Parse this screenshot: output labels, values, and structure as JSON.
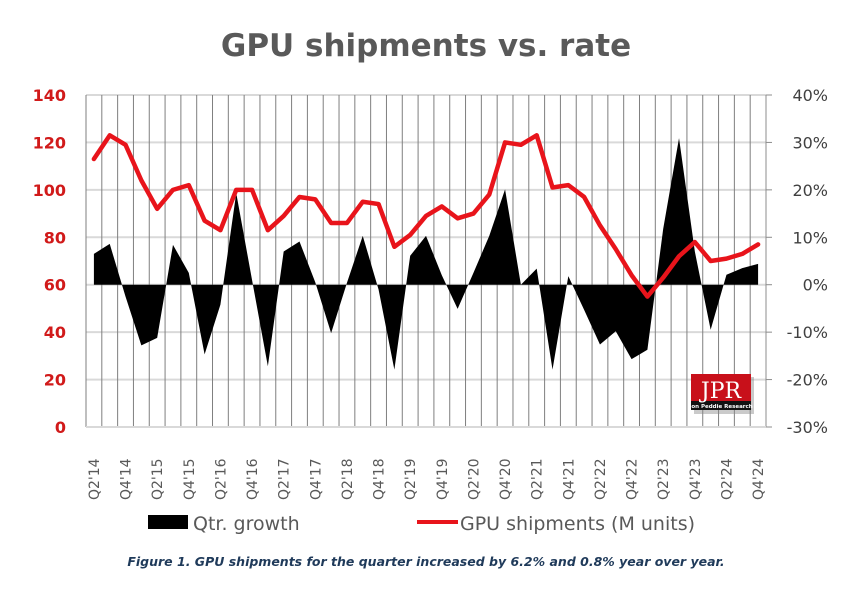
{
  "chart_data": {
    "type": "line+area",
    "title": "GPU shipments vs. rate",
    "caption": "Figure 1. GPU shipments for the quarter increased by 6.2% and 0.8% year over year.",
    "xlabel": "",
    "ylabel_left": "",
    "ylabel_right": "",
    "ylim_left": [
      0,
      140
    ],
    "ylim_right": [
      -30,
      40
    ],
    "yticks_left": [
      "0",
      "20",
      "40",
      "60",
      "80",
      "100",
      "120",
      "140"
    ],
    "yticks_left_values": [
      0,
      20,
      40,
      60,
      80,
      100,
      120,
      140
    ],
    "yticks_right": [
      "-30%",
      "-20%",
      "-10%",
      "0%",
      "10%",
      "20%",
      "30%",
      "40%"
    ],
    "yticks_right_values": [
      -30,
      -20,
      -10,
      0,
      10,
      20,
      30,
      40
    ],
    "grid": true,
    "legend_position": "bottom",
    "categories": [
      "Q2'14",
      "Q3'14",
      "Q4'14",
      "Q1'15",
      "Q2'15",
      "Q3'15",
      "Q4'15",
      "Q1'16",
      "Q2'16",
      "Q3'16",
      "Q4'16",
      "Q1'17",
      "Q2'17",
      "Q3'17",
      "Q4'17",
      "Q1'18",
      "Q2'18",
      "Q3'18",
      "Q4'18",
      "Q1'19",
      "Q2'19",
      "Q3'19",
      "Q4'19",
      "Q1'20",
      "Q2'20",
      "Q3'20",
      "Q4'20",
      "Q1'21",
      "Q2'21",
      "Q3'21",
      "Q4'21",
      "Q1'22",
      "Q2'22",
      "Q3'22",
      "Q4'22",
      "Q1'23",
      "Q2'23",
      "Q3'23",
      "Q4'23",
      "Q1'24",
      "Q2'24",
      "Q3'24",
      "Q4'24"
    ],
    "tick_labels_shown": [
      "Q2'14",
      "Q4'14",
      "Q2'15",
      "Q4'15",
      "Q2'16",
      "Q4'16",
      "Q2'17",
      "Q4'17",
      "Q2'18",
      "Q4'18",
      "Q2'19",
      "Q4'19",
      "Q2'20",
      "Q4'20",
      "Q2'21",
      "Q4'21",
      "Q2'22",
      "Q4'22",
      "Q2'23",
      "Q4'23",
      "Q2'24",
      "Q4'24"
    ],
    "series": [
      {
        "name": "Qtr. growth",
        "type": "area",
        "axis": "right",
        "unit": "%",
        "color": "#000000",
        "values": [
          6.5,
          8.6,
          -2.5,
          -12.8,
          -11.2,
          8.4,
          2.5,
          -14.7,
          -4.2,
          19.3,
          1.0,
          -17.2,
          7.0,
          9.1,
          0.5,
          -10.2,
          0.4,
          10.3,
          -1.0,
          -17.9,
          6.1,
          10.3,
          2.0,
          -5.1,
          2.5,
          10.3,
          20.1,
          0.0,
          3.4,
          -17.9,
          1.8,
          -5.3,
          -12.6,
          -9.8,
          -15.7,
          -13.7,
          11.8,
          30.9,
          7.0,
          -9.5,
          2.1,
          3.5,
          4.4
        ]
      },
      {
        "name": "GPU shipments (M units)",
        "type": "line",
        "axis": "left",
        "unit": "M units",
        "color": "#e8141b",
        "values": [
          113,
          123,
          119,
          104,
          92,
          100,
          102,
          87,
          83,
          100,
          100,
          83,
          89,
          97,
          96,
          86,
          86,
          95,
          94,
          76,
          81,
          89,
          93,
          88,
          90,
          98,
          120,
          119,
          123,
          101,
          102,
          97,
          85,
          75,
          64,
          55,
          63,
          72,
          78,
          70,
          71,
          73,
          77
        ]
      }
    ]
  },
  "legend": {
    "items": [
      {
        "label": "Qtr. growth",
        "color": "#000000"
      },
      {
        "label": "GPU shipments (M units)",
        "color": "#e8141b"
      }
    ]
  },
  "logo": {
    "text": "JPR",
    "subtext": "Jon Peddie Research",
    "color": "#c8101a"
  }
}
